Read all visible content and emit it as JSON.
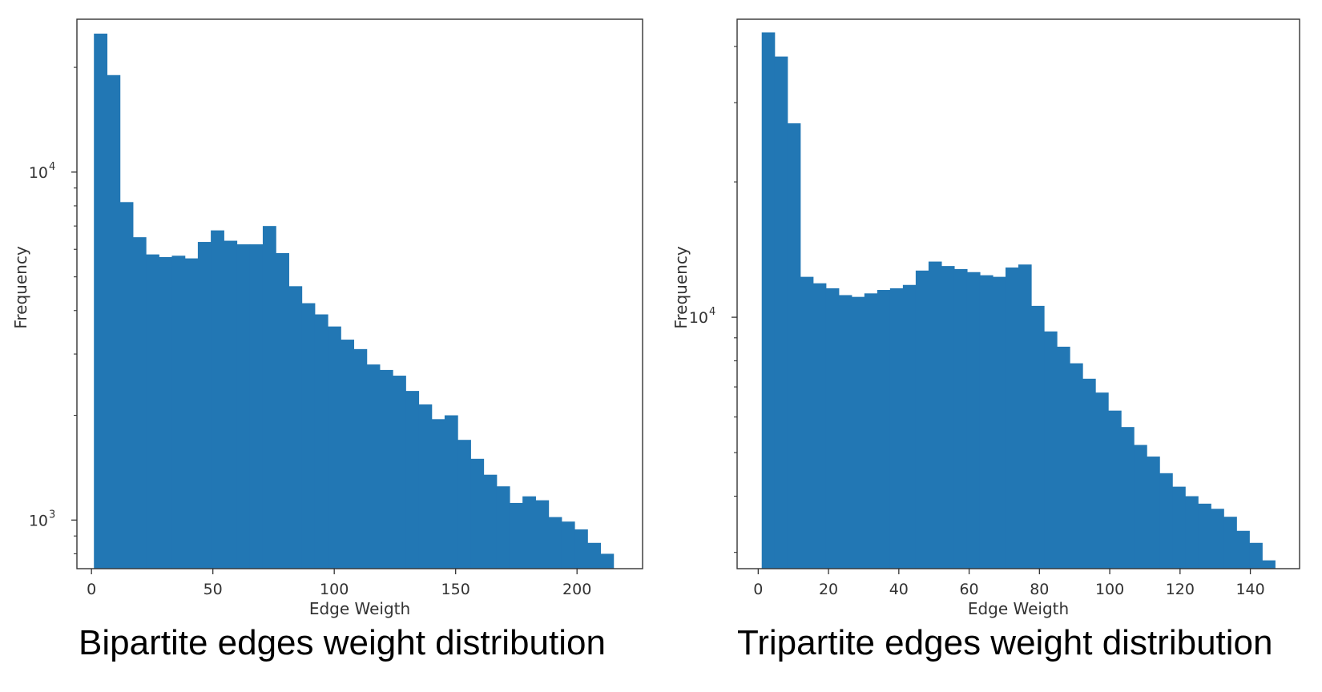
{
  "colors": {
    "bar": "#2277b4",
    "axis": "#333333",
    "background": "#ffffff"
  },
  "captions": {
    "left": "Bipartite edges weight distribution",
    "right": "Tripartite edges weight distribution"
  },
  "chart_data": [
    {
      "type": "bar",
      "title": "",
      "xlabel": "Edge Weigth",
      "ylabel": "Frequency",
      "yscale": "log",
      "grid": false,
      "xlim": [
        -6,
        227
      ],
      "ylim": [
        725,
        27500
      ],
      "xticks": [
        0,
        50,
        100,
        150,
        200
      ],
      "yticks_major": [
        {
          "value": 1000,
          "base": "10",
          "exp": "3"
        },
        {
          "value": 10000,
          "base": "10",
          "exp": "4"
        }
      ],
      "yticks_minor": [
        800,
        900,
        2000,
        3000,
        4000,
        5000,
        6000,
        7000,
        8000,
        9000,
        20000
      ],
      "bin_edges": [
        1,
        6.35,
        11.7,
        17.05,
        22.4,
        27.75,
        33.1,
        38.45,
        43.8,
        49.15,
        54.5,
        59.85,
        65.2,
        70.55,
        75.9,
        81.25,
        86.6,
        91.95,
        97.3,
        102.65,
        108,
        113.35,
        118.7,
        124.05,
        129.4,
        134.75,
        140.1,
        145.45,
        150.8,
        156.15,
        161.5,
        166.85,
        172.2,
        177.55,
        182.9,
        188.25,
        193.6,
        198.95,
        204.3,
        209.65,
        215
      ],
      "values": [
        25000,
        19000,
        8200,
        6500,
        5800,
        5700,
        5750,
        5650,
        6300,
        6800,
        6350,
        6200,
        6200,
        7000,
        5850,
        4700,
        4200,
        3900,
        3600,
        3300,
        3100,
        2800,
        2700,
        2600,
        2350,
        2150,
        1950,
        2000,
        1700,
        1500,
        1350,
        1250,
        1120,
        1170,
        1140,
        1020,
        990,
        940,
        860,
        800
      ]
    },
    {
      "type": "bar",
      "title": "",
      "xlabel": "Edge Weigth",
      "ylabel": "Frequency",
      "yscale": "log",
      "grid": false,
      "xlim": [
        -6,
        154
      ],
      "ylim": [
        2760,
        46000
      ],
      "xticks": [
        0,
        20,
        40,
        60,
        80,
        100,
        120,
        140
      ],
      "yticks_major": [
        {
          "value": 10000,
          "base": "10",
          "exp": "4"
        }
      ],
      "yticks_minor": [
        3000,
        4000,
        5000,
        6000,
        7000,
        8000,
        9000,
        20000,
        30000,
        40000
      ],
      "bin_edges": [
        1,
        4.65,
        8.3,
        11.95,
        15.6,
        19.25,
        22.9,
        26.55,
        30.2,
        33.85,
        37.5,
        41.15,
        44.8,
        48.45,
        52.1,
        55.75,
        59.4,
        63.05,
        66.7,
        70.35,
        74,
        77.65,
        81.3,
        84.95,
        88.6,
        92.25,
        95.9,
        99.55,
        103.2,
        106.85,
        110.5,
        114.15,
        117.8,
        121.45,
        125.1,
        128.75,
        132.4,
        136.05,
        139.7,
        143.35,
        147
      ],
      "values": [
        43000,
        38000,
        27000,
        12300,
        11900,
        11600,
        11200,
        11100,
        11300,
        11500,
        11600,
        11800,
        12700,
        13300,
        13000,
        12800,
        12600,
        12400,
        12300,
        12900,
        13100,
        10600,
        9300,
        8600,
        7900,
        7300,
        6800,
        6200,
        5700,
        5200,
        4900,
        4500,
        4200,
        4000,
        3850,
        3750,
        3600,
        3350,
        3150,
        2880
      ]
    }
  ]
}
